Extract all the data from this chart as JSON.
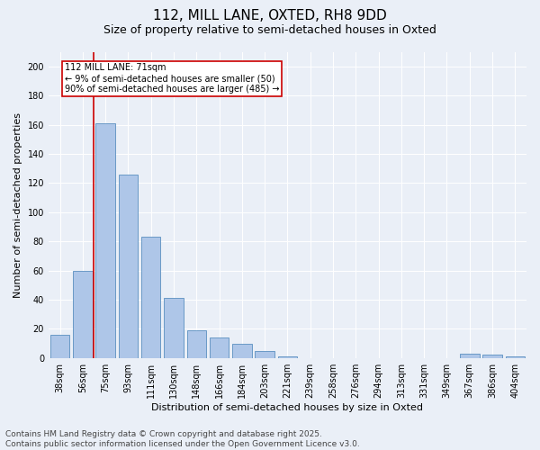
{
  "title": "112, MILL LANE, OXTED, RH8 9DD",
  "subtitle": "Size of property relative to semi-detached houses in Oxted",
  "xlabel": "Distribution of semi-detached houses by size in Oxted",
  "ylabel": "Number of semi-detached properties",
  "categories": [
    "38sqm",
    "56sqm",
    "75sqm",
    "93sqm",
    "111sqm",
    "130sqm",
    "148sqm",
    "166sqm",
    "184sqm",
    "203sqm",
    "221sqm",
    "239sqm",
    "258sqm",
    "276sqm",
    "294sqm",
    "313sqm",
    "331sqm",
    "349sqm",
    "367sqm",
    "386sqm",
    "404sqm"
  ],
  "values": [
    16,
    60,
    161,
    126,
    83,
    41,
    19,
    14,
    10,
    5,
    1,
    0,
    0,
    0,
    0,
    0,
    0,
    0,
    3,
    2,
    1
  ],
  "bar_color": "#aec6e8",
  "bar_edge_color": "#5a8fc0",
  "vline_x": 1.5,
  "vline_color": "#cc0000",
  "annotation_text": "112 MILL LANE: 71sqm\n← 9% of semi-detached houses are smaller (50)\n90% of semi-detached houses are larger (485) →",
  "annotation_box_color": "#ffffff",
  "annotation_box_edge": "#cc0000",
  "ylim": [
    0,
    210
  ],
  "yticks": [
    0,
    20,
    40,
    60,
    80,
    100,
    120,
    140,
    160,
    180,
    200
  ],
  "footer": "Contains HM Land Registry data © Crown copyright and database right 2025.\nContains public sector information licensed under the Open Government Licence v3.0.",
  "bg_color": "#eaeff7",
  "plot_bg_color": "#eaeff7",
  "title_fontsize": 11,
  "subtitle_fontsize": 9,
  "axis_label_fontsize": 8,
  "tick_fontsize": 7,
  "footer_fontsize": 6.5
}
